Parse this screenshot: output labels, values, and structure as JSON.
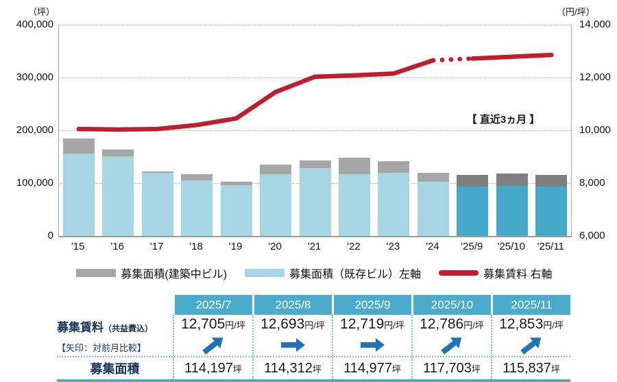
{
  "chart": {
    "left_unit": "（坪）",
    "right_unit": "（円/坪）",
    "annotation": "【 直近3ヵ月 】"
  },
  "chart_data": {
    "type": "bar",
    "subtype": "stacked-column-with-line-combo",
    "categories": [
      "'15",
      "'16",
      "'17",
      "'18",
      "'19",
      "'20",
      "'21",
      "'22",
      "'23",
      "'24",
      "'25/9",
      "'25/10",
      "'25/11"
    ],
    "series": [
      {
        "name": "募集面積（既存ビル）左軸",
        "type": "bar",
        "axis": "left",
        "values": [
          156000,
          151000,
          119000,
          105000,
          96000,
          117000,
          128000,
          117000,
          119000,
          102000,
          93000,
          95000,
          93000
        ]
      },
      {
        "name": "募集面積(建築中ビル)",
        "type": "bar",
        "axis": "left",
        "values": [
          29000,
          13000,
          3000,
          12000,
          6000,
          18000,
          15000,
          31000,
          23000,
          17000,
          22000,
          23000,
          23000
        ]
      },
      {
        "name": "募集賃料 右軸",
        "type": "line",
        "axis": "right",
        "values": [
          10050,
          10030,
          10050,
          10200,
          10450,
          11450,
          12030,
          12080,
          12150,
          12650,
          12719,
          12786,
          12853
        ]
      }
    ],
    "left_axis": {
      "unit": "（坪）",
      "min": 0,
      "max": 400000,
      "step": 100000,
      "tick_labels": [
        "400,000",
        "300,000",
        "200,000",
        "100,000",
        "0"
      ]
    },
    "right_axis": {
      "unit": "（円/坪）",
      "min": 6000,
      "max": 14000,
      "step": 2000,
      "tick_labels": [
        "14,000",
        "12,000",
        "10,000",
        "8,000",
        "6,000"
      ]
    },
    "annotation": "【 直近3ヵ月 】",
    "highlight_from_index": 10,
    "dotted_line_segment": [
      9,
      10
    ],
    "grid": "horizontal dotted lines",
    "legend_position": "bottom"
  },
  "colors": {
    "bar_existing": "#a6d5e4",
    "bar_existing_recent": "#46a9ca",
    "bar_construction": "#a6a6a6",
    "bar_construction_recent": "#7f7f7f",
    "rent_line": "#be1e2d",
    "table_header_bg": "#4aabca",
    "table_header_text": "#ffffff",
    "label_navy": "#17365d",
    "arrow_blue": "#2173b8",
    "dotted_border": "#7fc0d8"
  },
  "legend": {
    "items": [
      {
        "swatch": "gray-bar",
        "label": "募集面積(建築中ビル)"
      },
      {
        "swatch": "lightblue-bar",
        "label": "募集面積（既存ビル）左軸"
      },
      {
        "swatch": "red-line",
        "label": "募集賃料 右軸"
      }
    ]
  },
  "table": {
    "row_labels": {
      "rent_main": "募集賃料",
      "rent_sub": "（共益費込）",
      "arrow_note": "【矢印：対前月比較】",
      "area": "募集面積"
    },
    "units": {
      "rent": "円/坪",
      "area": "坪"
    },
    "columns": [
      {
        "month": "2025/7",
        "rent": "12,705",
        "arrow": "up",
        "area": "114,197"
      },
      {
        "month": "2025/8",
        "rent": "12,693",
        "arrow": "right",
        "area": "114,312"
      },
      {
        "month": "2025/9",
        "rent": "12,719",
        "arrow": "right",
        "area": "114,977"
      },
      {
        "month": "2025/10",
        "rent": "12,786",
        "arrow": "up",
        "area": "117,703"
      },
      {
        "month": "2025/11",
        "rent": "12,853",
        "arrow": "up",
        "area": "115,837"
      }
    ]
  }
}
